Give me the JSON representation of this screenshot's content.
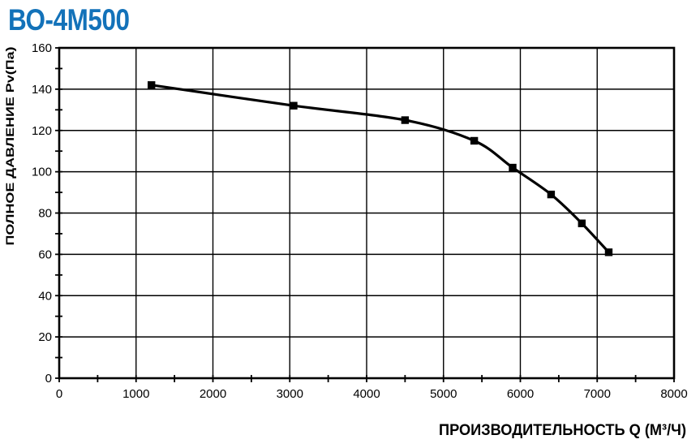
{
  "header": {
    "title": "ВО-4М500"
  },
  "colors": {
    "title": "#1372b9",
    "line": "#000000",
    "grid": "#000000",
    "background": "#ffffff"
  },
  "chart_data": {
    "type": "line",
    "title": "ВО-4М500",
    "xlabel": "ПРОИЗВОДИТЕЛЬНОСТЬ  Q  (М³/Ч)",
    "ylabel": "ПОЛНОЕ ДАВЛЕНИЕ  Pv(Па)",
    "xlim": [
      0,
      8000
    ],
    "ylim": [
      0,
      160
    ],
    "x_ticks": [
      0,
      1000,
      2000,
      3000,
      4000,
      5000,
      6000,
      7000,
      8000
    ],
    "y_ticks": [
      0,
      20,
      40,
      60,
      80,
      100,
      120,
      140,
      160
    ],
    "x_minor_step": 500,
    "y_minor_step": 10,
    "grid": "major-both",
    "legend": "none",
    "series": [
      {
        "marker": "square",
        "color": "#000000",
        "points": [
          [
            1200,
            142
          ],
          [
            3050,
            132
          ],
          [
            4500,
            125
          ],
          [
            5400,
            115
          ],
          [
            5900,
            102
          ],
          [
            6400,
            89
          ],
          [
            6800,
            75
          ],
          [
            7150,
            61
          ]
        ]
      }
    ]
  }
}
